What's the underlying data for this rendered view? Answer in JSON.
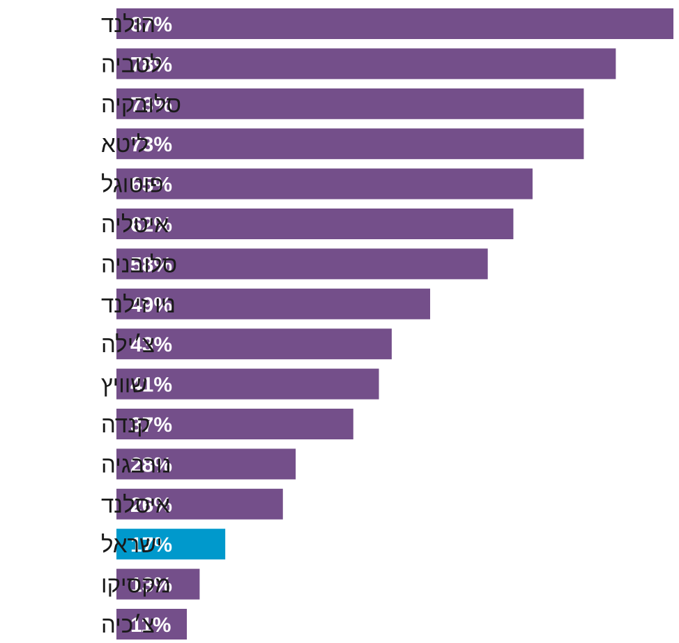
{
  "chart_data": {
    "type": "bar",
    "orientation": "horizontal",
    "categories": [
      "הולנד",
      "לטביה",
      "סלובקיה",
      "ליטא",
      "פוטוגל",
      "איטליה",
      "סלובניה",
      "ניו זילנד",
      "צ׳ילה",
      "שוויץ",
      "קנדה",
      "נורבגיה",
      "איסלנד",
      "ישראל",
      "מקסיקו",
      "צ׳כיה"
    ],
    "values": [
      87,
      78,
      73,
      73,
      65,
      62,
      58,
      49,
      43,
      41,
      37,
      28,
      26,
      17,
      13,
      11
    ],
    "value_labels": [
      "87%",
      "78%",
      "73%",
      "73%",
      "65%",
      "62%",
      "58%",
      "49%",
      "43%",
      "41%",
      "37%",
      "28%",
      "26%",
      "17%",
      "13%",
      "11%"
    ],
    "unit": "%",
    "xlim": [
      0,
      87
    ],
    "grid": false,
    "bar_color": "#744f8a",
    "highlight_color": "#0099cc",
    "highlight_category": "ישראל"
  }
}
